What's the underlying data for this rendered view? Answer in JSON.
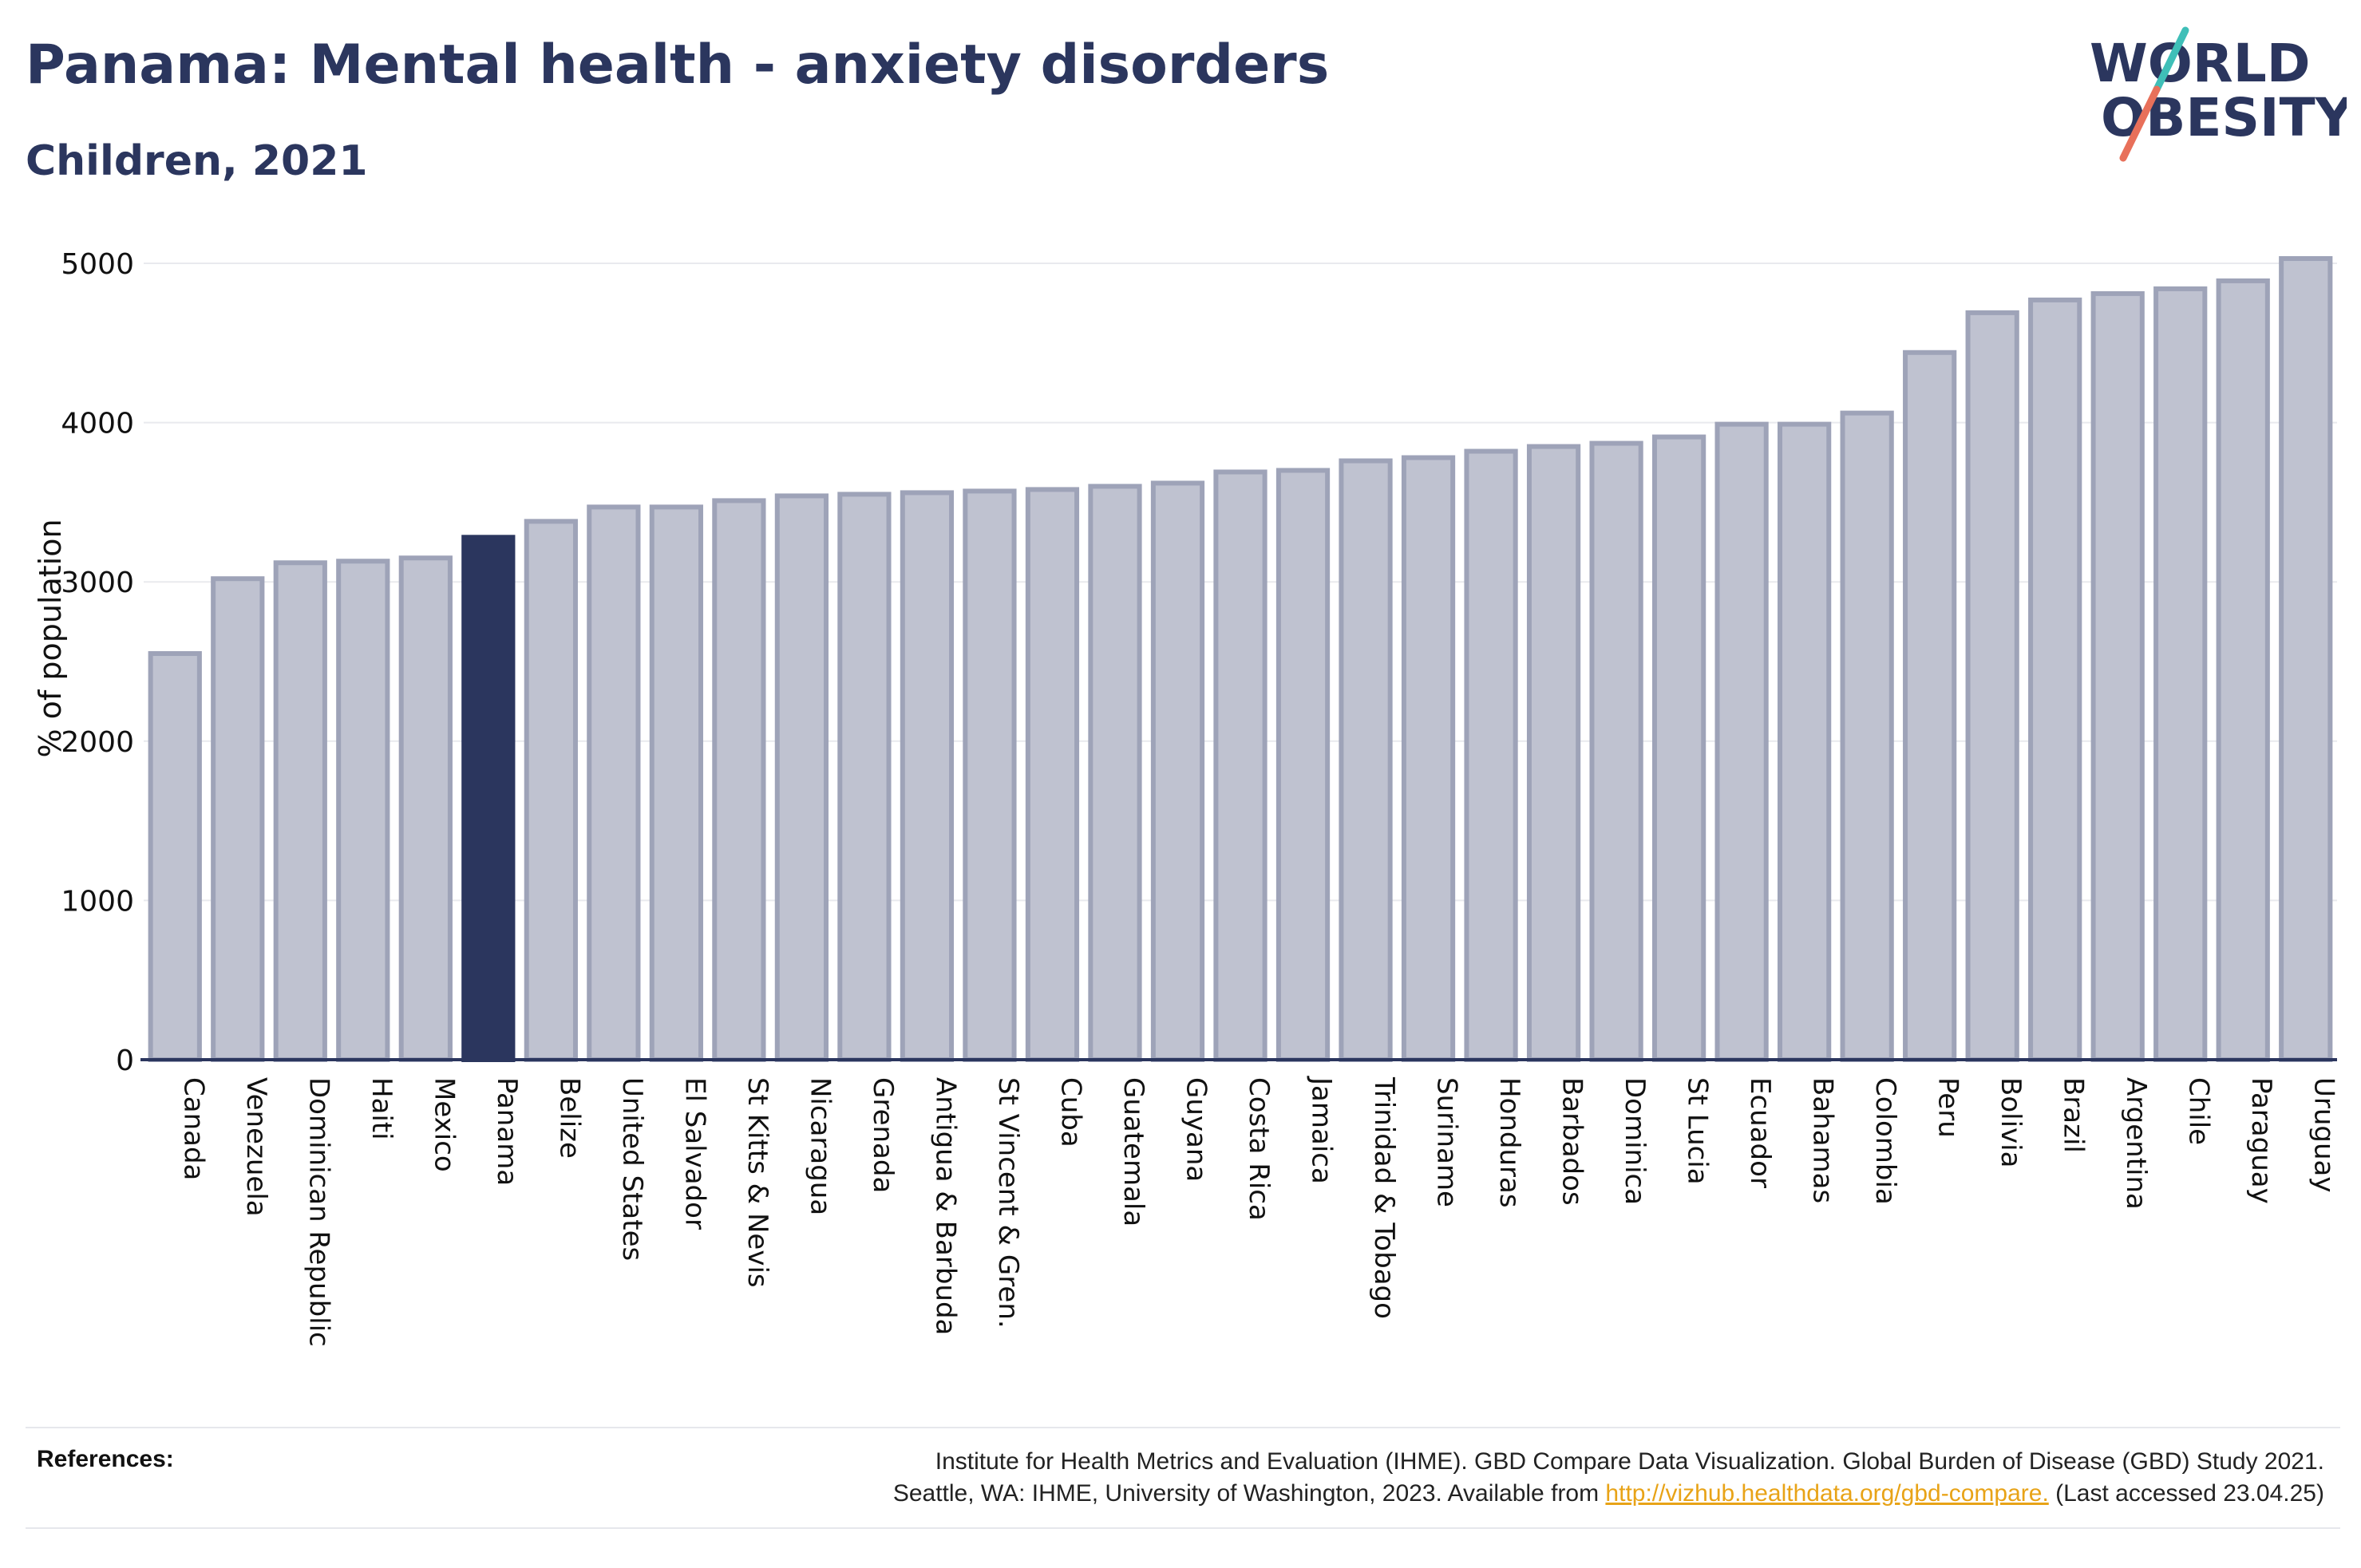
{
  "header": {
    "title": "Panama: Mental health - anxiety disorders",
    "subtitle": "Children, 2021"
  },
  "logo": {
    "line1": "WORLD",
    "line2": "OBESITY",
    "icon": "slash-logo-icon"
  },
  "colors": {
    "highlight": "#2b365e",
    "bar_fill": "#bfc2d0",
    "bar_stroke": "#9ea3b8",
    "text": "#2b365e",
    "link": "#e8a317",
    "logo_teal": "#3fbfb8",
    "logo_coral": "#e8705a"
  },
  "chart_data": {
    "type": "bar",
    "title": "Panama: Mental health - anxiety disorders",
    "subtitle": "Children, 2021",
    "xlabel": "",
    "ylabel": "% of population",
    "ylim": [
      0,
      5000
    ],
    "yticks": [
      0,
      1000,
      2000,
      3000,
      4000,
      5000
    ],
    "grid": true,
    "highlight": "Panama",
    "categories": [
      "Canada",
      "Venezuela",
      "Dominican Republic",
      "Haiti",
      "Mexico",
      "Panama",
      "Belize",
      "United States",
      "El Salvador",
      "St Kitts & Nevis",
      "Nicaragua",
      "Grenada",
      "Antigua & Barbuda",
      "St Vincent & Gren.",
      "Cuba",
      "Guatemala",
      "Guyana",
      "Costa Rica",
      "Jamaica",
      "Trinidad & Tobago",
      "Suriname",
      "Honduras",
      "Barbados",
      "Dominica",
      "St Lucia",
      "Ecuador",
      "Bahamas",
      "Colombia",
      "Peru",
      "Bolivia",
      "Brazil",
      "Argentina",
      "Chile",
      "Paraguay",
      "Uruguay"
    ],
    "values": [
      2550,
      3020,
      3120,
      3130,
      3150,
      3280,
      3380,
      3470,
      3470,
      3510,
      3540,
      3550,
      3560,
      3570,
      3580,
      3600,
      3620,
      3690,
      3700,
      3760,
      3780,
      3820,
      3850,
      3870,
      3910,
      3990,
      3990,
      4060,
      4440,
      4690,
      4770,
      4810,
      4840,
      4890,
      5030
    ]
  },
  "references": {
    "label": "References:",
    "line1": "Institute for Health Metrics and Evaluation (IHME). GBD Compare Data Visualization. Global Burden of Disease (GBD) Study 2021.",
    "line2_pre": "Seattle, WA: IHME, University of Washington, 2023. Available from ",
    "link": "http://vizhub.healthdata.org/gbd-compare.",
    "line2_post": " (Last accessed 23.04.25)"
  }
}
